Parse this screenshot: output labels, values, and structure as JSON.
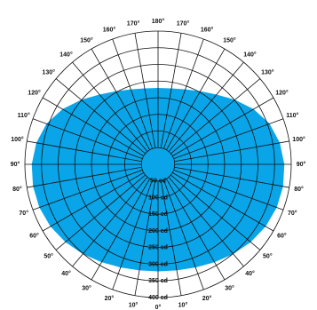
{
  "chart_data": {
    "type": "polar",
    "theta": [
      0,
      10,
      20,
      30,
      40,
      50,
      60,
      70,
      80,
      90,
      100,
      110,
      120,
      130,
      140,
      150,
      160,
      170,
      180
    ],
    "series": [
      {
        "color": "#0aa5e8",
        "values": [
          320,
          322,
          328,
          338,
          350,
          362,
          372,
          378,
          380,
          378,
          370,
          355,
          330,
          300,
          272,
          252,
          238,
          230,
          228
        ]
      }
    ],
    "rlim": [
      0,
      400
    ],
    "rticks": [
      {
        "value": 50,
        "label": "50 cd"
      },
      {
        "value": 100,
        "label": "100 cd"
      },
      {
        "value": 150,
        "label": "150 cd"
      },
      {
        "value": 200,
        "label": "200 cd"
      },
      {
        "value": 250,
        "label": "250 cd"
      },
      {
        "value": 300,
        "label": "300 cd"
      },
      {
        "value": 350,
        "label": "350 cd"
      },
      {
        "value": 400,
        "label": "400 cd"
      }
    ],
    "thetaticks": [
      {
        "value": 0,
        "label": "0°"
      },
      {
        "value": 10,
        "label": "10°"
      },
      {
        "value": 20,
        "label": "20°"
      },
      {
        "value": 30,
        "label": "30°"
      },
      {
        "value": 40,
        "label": "40°"
      },
      {
        "value": 50,
        "label": "50°"
      },
      {
        "value": 60,
        "label": "60°"
      },
      {
        "value": 70,
        "label": "70°"
      },
      {
        "value": 80,
        "label": "80°"
      },
      {
        "value": 90,
        "label": "90°"
      },
      {
        "value": 100,
        "label": "100°"
      },
      {
        "value": 110,
        "label": "110°"
      },
      {
        "value": 120,
        "label": "120°"
      },
      {
        "value": 130,
        "label": "130°"
      },
      {
        "value": 140,
        "label": "140°"
      },
      {
        "value": 150,
        "label": "150°"
      },
      {
        "value": 160,
        "label": "160°"
      },
      {
        "value": 170,
        "label": "170°"
      },
      {
        "value": 180,
        "label": "180°"
      }
    ]
  }
}
